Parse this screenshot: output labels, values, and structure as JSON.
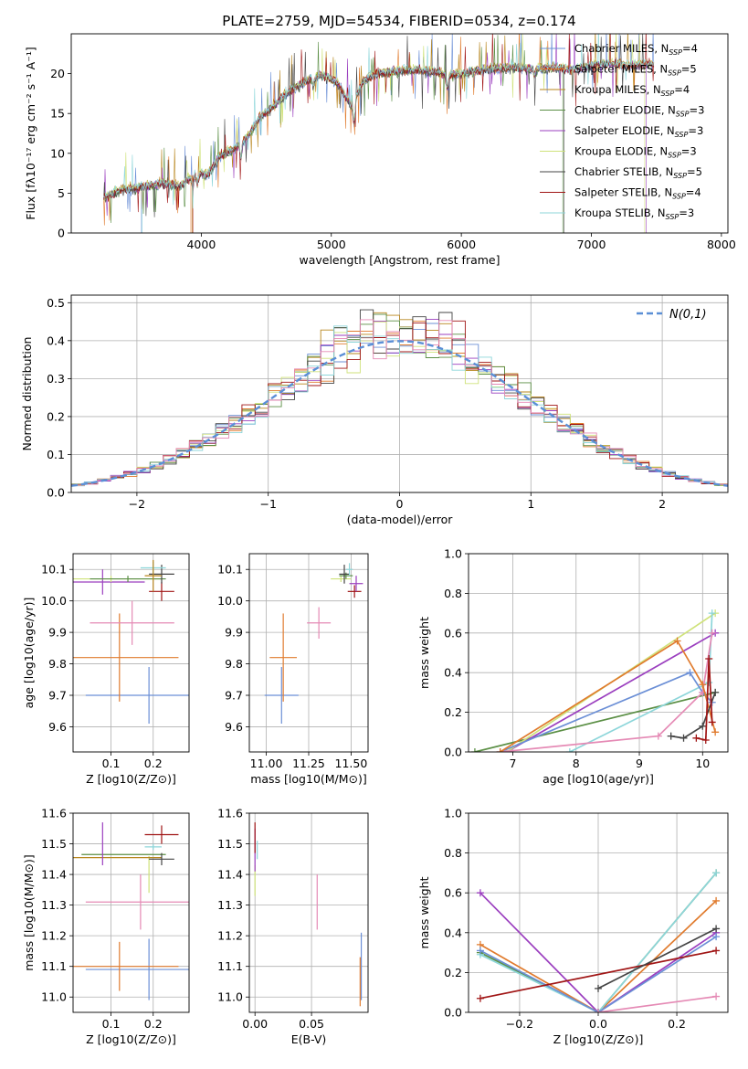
{
  "title": "PLATE=2759, MJD=54534, FIBERID=0534, z=0.174",
  "colors": {
    "chabrier_miles": "#6b8fd6",
    "salpeter_miles": "#e07b2e",
    "kroupa_miles": "#b8861e",
    "chabrier_elodie": "#5b8f45",
    "salpeter_elodie": "#9b3fbf",
    "kroupa_elodie": "#cfe27a",
    "chabrier_stelib": "#444444",
    "salpeter_stelib": "#a01515",
    "kroupa_stelib": "#8dd6da",
    "pink": "#e58ab5",
    "gauss": "#5b8fd6"
  },
  "chart_data": [
    {
      "id": "spectrum",
      "type": "line",
      "xlabel": "wavelength [Angstrom, rest frame]",
      "ylabel": "Flux [fλ10⁻¹⁷ erg cm⁻² s⁻¹ A⁻¹]",
      "xlim": [
        3000,
        8050
      ],
      "ylim": [
        0,
        25
      ],
      "xticks": [
        4000,
        5000,
        6000,
        7000,
        8000
      ],
      "yticks": [
        0,
        5,
        10,
        15,
        20
      ],
      "grid": false,
      "legend": "top-right",
      "x": [
        3250,
        3400,
        3550,
        3700,
        3850,
        3950,
        4050,
        4150,
        4250,
        4350,
        4450,
        4550,
        4650,
        4750,
        4850,
        4950,
        5050,
        5150,
        5250,
        5350,
        5500,
        5650,
        5800,
        5950,
        6100,
        6250,
        6400,
        6550,
        6700,
        6850,
        7000,
        7150,
        7300,
        7450
      ],
      "y": [
        4.5,
        5.5,
        5.8,
        6.2,
        6.0,
        7.5,
        7.3,
        9.8,
        10.5,
        12.0,
        14.5,
        15.8,
        17.5,
        18.5,
        19.5,
        19.8,
        18.8,
        16.0,
        19.2,
        20.0,
        20.3,
        20.5,
        20.2,
        19.8,
        20.4,
        20.6,
        20.8,
        20.6,
        20.7,
        20.5,
        21.0,
        21.3,
        21.0,
        21.2
      ],
      "series": [
        {
          "name": "Chabrier MILES, N_SSP=4"
        },
        {
          "name": "Salpeter MILES, N_SSP=5"
        },
        {
          "name": "Kroupa MILES, N_SSP=4"
        },
        {
          "name": "Chabrier ELODIE, N_SSP=3"
        },
        {
          "name": "Salpeter ELODIE, N_SSP=3"
        },
        {
          "name": "Kroupa ELODIE, N_SSP=3"
        },
        {
          "name": "Chabrier STELIB, N_SSP=5"
        },
        {
          "name": "Salpeter STELIB, N_SSP=4"
        },
        {
          "name": "Kroupa STELIB, N_SSP=3"
        }
      ]
    },
    {
      "id": "residuals",
      "type": "area",
      "xlabel": "(data-model)/error",
      "ylabel": "Normed distribution",
      "xlim": [
        -2.5,
        2.5
      ],
      "ylim": [
        0,
        0.52
      ],
      "xticks": [
        -2,
        -1,
        0,
        1,
        2
      ],
      "yticks": [
        0.0,
        0.1,
        0.2,
        0.3,
        0.4,
        0.5
      ],
      "grid": true,
      "legend": "top-right",
      "gaussian_name": "N(0,1)",
      "bin_width": 0.1
    },
    {
      "id": "age_vs_z",
      "type": "scatter",
      "xlabel": "Z [log10(Z/Z⊙)]",
      "ylabel": "age [log10(age/yr)]",
      "xlim": [
        0.01,
        0.285
      ],
      "ylim": [
        9.52,
        10.15
      ],
      "xticks": [
        0.1,
        0.2
      ],
      "yticks": [
        9.6,
        9.7,
        9.8,
        9.9,
        10.0,
        10.1
      ],
      "grid": true,
      "points": [
        {
          "x": 0.19,
          "y": 9.7,
          "xerr": 0.15,
          "yerr": 0.09,
          "c": "chabrier_miles"
        },
        {
          "x": 0.12,
          "y": 9.82,
          "xerr": 0.14,
          "yerr": 0.14,
          "c": "salpeter_miles"
        },
        {
          "x": 0.15,
          "y": 9.93,
          "xerr": 0.1,
          "yerr": 0.07,
          "c": "pink"
        },
        {
          "x": 0.22,
          "y": 10.03,
          "xerr": 0.03,
          "yerr": 0.03,
          "c": "salpeter_stelib"
        },
        {
          "x": 0.08,
          "y": 10.06,
          "xerr": 0.1,
          "yerr": 0.04,
          "c": "salpeter_elodie"
        },
        {
          "x": 0.1,
          "y": 10.07,
          "xerr": 0.12,
          "yerr": 0.01,
          "c": "kroupa_elodie"
        },
        {
          "x": 0.14,
          "y": 10.07,
          "xerr": 0.09,
          "yerr": 0.01,
          "c": "chabrier_elodie"
        },
        {
          "x": 0.22,
          "y": 10.085,
          "xerr": 0.03,
          "yerr": 0.03,
          "c": "chabrier_stelib"
        },
        {
          "x": 0.2,
          "y": 10.105,
          "xerr": 0.03,
          "yerr": 0.02,
          "c": "kroupa_stelib"
        },
        {
          "x": 0.2,
          "y": 10.08,
          "xerr": 0.02,
          "yerr": 0.05,
          "c": "kroupa_miles"
        }
      ]
    },
    {
      "id": "age_vs_mass",
      "type": "scatter",
      "xlabel": "mass [log10(M/M⊙)]",
      "ylabel": "",
      "xlim": [
        10.9,
        11.6
      ],
      "ylim": [
        9.52,
        10.15
      ],
      "xticks": [
        11.0,
        11.25,
        11.5
      ],
      "xticklabels": [
        "11.00",
        "11.25",
        "11.50"
      ],
      "yticks": [
        9.6,
        9.7,
        9.8,
        9.9,
        10.0,
        10.1
      ],
      "grid": true,
      "points": [
        {
          "x": 11.09,
          "y": 9.7,
          "xerr": 0.1,
          "yerr": 0.09,
          "c": "chabrier_miles"
        },
        {
          "x": 11.1,
          "y": 9.82,
          "xerr": 0.08,
          "yerr": 0.14,
          "c": "salpeter_miles"
        },
        {
          "x": 11.31,
          "y": 9.93,
          "xerr": 0.07,
          "yerr": 0.05,
          "c": "pink"
        },
        {
          "x": 11.52,
          "y": 10.03,
          "xerr": 0.04,
          "yerr": 0.02,
          "c": "salpeter_stelib"
        },
        {
          "x": 11.53,
          "y": 10.055,
          "xerr": 0.04,
          "yerr": 0.025,
          "c": "salpeter_elodie"
        },
        {
          "x": 11.44,
          "y": 10.07,
          "xerr": 0.06,
          "yerr": 0.01,
          "c": "kroupa_elodie"
        },
        {
          "x": 11.47,
          "y": 10.08,
          "xerr": 0.04,
          "yerr": 0.01,
          "c": "chabrier_elodie"
        },
        {
          "x": 11.46,
          "y": 10.085,
          "xerr": 0.03,
          "yerr": 0.03,
          "c": "chabrier_stelib"
        },
        {
          "x": 11.49,
          "y": 10.1,
          "xerr": 0.02,
          "yerr": 0.02,
          "c": "kroupa_stelib"
        }
      ]
    },
    {
      "id": "weight_vs_age",
      "type": "line",
      "xlabel": "age [log10(age/yr)]",
      "ylabel": "mass weight",
      "xlim": [
        6.3,
        10.4
      ],
      "ylim": [
        0,
        1.0
      ],
      "xticks": [
        7,
        8,
        9,
        10
      ],
      "yticks": [
        0.0,
        0.2,
        0.4,
        0.6,
        0.8,
        1.0
      ],
      "grid": true,
      "series": [
        {
          "c": "chabrier_elodie",
          "x": [
            6.4,
            10.2
          ],
          "y": [
            0.0,
            0.3
          ]
        },
        {
          "c": "salpeter_elodie",
          "x": [
            6.9,
            10.2
          ],
          "y": [
            0.0,
            0.6
          ]
        },
        {
          "c": "kroupa_elodie",
          "x": [
            6.9,
            10.2
          ],
          "y": [
            0.0,
            0.7
          ]
        },
        {
          "c": "kroupa_stelib",
          "x": [
            7.9,
            10.1,
            10.15
          ],
          "y": [
            0.0,
            0.35,
            0.7
          ]
        },
        {
          "c": "chabrier_miles",
          "x": [
            6.8,
            9.8,
            10.0,
            10.15
          ],
          "y": [
            0.0,
            0.4,
            0.3,
            0.25
          ]
        },
        {
          "c": "pink",
          "x": [
            6.8,
            9.3,
            10.0,
            10.15
          ],
          "y": [
            0.0,
            0.08,
            0.3,
            0.6
          ]
        },
        {
          "c": "salpeter_miles",
          "x": [
            6.8,
            9.6,
            10.0,
            10.2
          ],
          "y": [
            0.0,
            0.56,
            0.34,
            0.1
          ]
        },
        {
          "c": "chabrier_stelib",
          "x": [
            9.5,
            9.7,
            10.0,
            10.2
          ],
          "y": [
            0.08,
            0.07,
            0.13,
            0.3
          ]
        },
        {
          "c": "salpeter_stelib",
          "x": [
            9.9,
            10.05,
            10.1,
            10.15
          ],
          "y": [
            0.07,
            0.06,
            0.47,
            0.15
          ]
        }
      ]
    },
    {
      "id": "mass_vs_z",
      "type": "scatter",
      "xlabel": "Z [log10(Z/Z⊙)]",
      "ylabel": "mass [log10(M/M⊙)]",
      "xlim": [
        0.01,
        0.285
      ],
      "ylim": [
        10.95,
        11.6
      ],
      "xticks": [
        0.1,
        0.2
      ],
      "yticks": [
        11.0,
        11.1,
        11.2,
        11.3,
        11.4,
        11.5,
        11.6
      ],
      "grid": true,
      "points": [
        {
          "x": 0.19,
          "y": 11.09,
          "xerr": 0.15,
          "yerr": 0.1,
          "c": "chabrier_miles"
        },
        {
          "x": 0.12,
          "y": 11.1,
          "xerr": 0.14,
          "yerr": 0.08,
          "c": "salpeter_miles"
        },
        {
          "x": 0.17,
          "y": 11.31,
          "xerr": 0.13,
          "yerr": 0.09,
          "c": "pink"
        },
        {
          "x": 0.19,
          "y": 11.4,
          "xerr": 0.0,
          "yerr": 0.06,
          "c": "kroupa_elodie"
        },
        {
          "x": 0.22,
          "y": 11.53,
          "xerr": 0.04,
          "yerr": 0.03,
          "c": "salpeter_stelib"
        },
        {
          "x": 0.1,
          "y": 11.455,
          "xerr": 0.12,
          "yerr": 0.0,
          "c": "kroupa_miles"
        },
        {
          "x": 0.13,
          "y": 11.465,
          "xerr": 0.1,
          "yerr": 0.0,
          "c": "chabrier_elodie"
        },
        {
          "x": 0.08,
          "y": 11.5,
          "xerr": 0.0,
          "yerr": 0.07,
          "c": "salpeter_elodie"
        },
        {
          "x": 0.22,
          "y": 11.45,
          "xerr": 0.03,
          "yerr": 0.02,
          "c": "chabrier_stelib"
        },
        {
          "x": 0.2,
          "y": 11.49,
          "xerr": 0.02,
          "yerr": 0.01,
          "c": "kroupa_stelib"
        }
      ]
    },
    {
      "id": "mass_vs_ebv",
      "type": "scatter",
      "xlabel": "E(B-V)",
      "ylabel": "",
      "xlim": [
        -0.005,
        0.1
      ],
      "ylim": [
        10.95,
        11.6
      ],
      "xticks": [
        0.0,
        0.05
      ],
      "xticklabels": [
        "0.00",
        "0.05"
      ],
      "yticks": [
        11.0,
        11.1,
        11.2,
        11.3,
        11.4,
        11.5,
        11.6
      ],
      "grid": true,
      "points": [
        {
          "x": 0.094,
          "y": 11.1,
          "xerr": 0,
          "yerr": 0.11,
          "c": "chabrier_miles"
        },
        {
          "x": 0.093,
          "y": 11.05,
          "xerr": 0,
          "yerr": 0.08,
          "c": "salpeter_miles"
        },
        {
          "x": 0.055,
          "y": 11.31,
          "xerr": 0,
          "yerr": 0.09,
          "c": "pink"
        },
        {
          "x": 0.0,
          "y": 11.38,
          "xerr": 0,
          "yerr": 0.05,
          "c": "kroupa_elodie"
        },
        {
          "x": 0.0,
          "y": 11.48,
          "xerr": 0,
          "yerr": 0.07,
          "c": "salpeter_elodie"
        },
        {
          "x": 0.002,
          "y": 11.48,
          "xerr": 0,
          "yerr": 0.03,
          "c": "kroupa_stelib"
        },
        {
          "x": 0.0,
          "y": 11.52,
          "xerr": 0,
          "yerr": 0.05,
          "c": "salpeter_stelib"
        }
      ]
    },
    {
      "id": "weight_vs_z",
      "type": "line",
      "xlabel": "Z [log10(Z/Z⊙)]",
      "ylabel": "mass weight",
      "xlim": [
        -0.33,
        0.33
      ],
      "ylim": [
        0,
        1.0
      ],
      "xticks": [
        -0.2,
        0.0,
        0.2
      ],
      "xticklabels": [
        "−0.2",
        "0.0",
        "0.2"
      ],
      "yticks": [
        0.0,
        0.2,
        0.4,
        0.6,
        0.8,
        1.0
      ],
      "grid": true,
      "series": [
        {
          "c": "salpeter_elodie",
          "x": [
            -0.3,
            0.0,
            0.3
          ],
          "y": [
            0.6,
            0.0,
            0.4
          ]
        },
        {
          "c": "salpeter_miles",
          "x": [
            -0.3,
            0.0,
            0.3
          ],
          "y": [
            0.34,
            0.0,
            0.56
          ]
        },
        {
          "c": "chabrier_elodie",
          "x": [
            -0.3,
            0.0,
            0.3
          ],
          "y": [
            0.3,
            0.0,
            0.7
          ]
        },
        {
          "c": "kroupa_stelib",
          "x": [
            -0.3,
            0.0,
            0.3
          ],
          "y": [
            0.29,
            0.0,
            0.7
          ]
        },
        {
          "c": "chabrier_miles",
          "x": [
            -0.3,
            0.0,
            0.3
          ],
          "y": [
            0.31,
            0.0,
            0.38
          ]
        },
        {
          "c": "salpeter_stelib",
          "x": [
            -0.3,
            0.3
          ],
          "y": [
            0.07,
            0.31
          ]
        },
        {
          "c": "chabrier_stelib",
          "x": [
            0.0,
            0.3
          ],
          "y": [
            0.12,
            0.42
          ]
        },
        {
          "c": "pink",
          "x": [
            0.0,
            0.3
          ],
          "y": [
            0.0,
            0.08
          ]
        }
      ]
    }
  ]
}
